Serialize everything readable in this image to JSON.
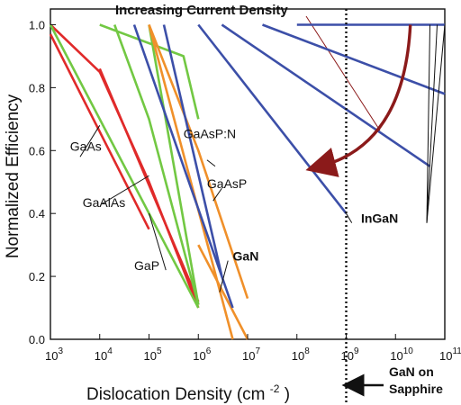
{
  "chart_data": {
    "type": "line",
    "title": "",
    "xlabel": "Dislocation Density (cm",
    "xlabel_sup": "-2",
    "xlabel_close": ")",
    "ylabel": "Normalized Efficiency",
    "x_scale": "log",
    "xlim": [
      1000,
      100000000000
    ],
    "ylim": [
      0.0,
      1.05
    ],
    "x_ticks": [
      1000,
      10000,
      100000,
      1000000,
      10000000,
      100000000,
      1000000000,
      10000000000,
      100000000000
    ],
    "x_tick_mantissa": "10",
    "x_tick_exponents": [
      "3",
      "4",
      "5",
      "6",
      "7",
      "8",
      "9",
      "10",
      "11"
    ],
    "y_ticks": [
      "0.0",
      "0.2",
      "0.4",
      "0.6",
      "0.8",
      "1.0"
    ],
    "grid": false,
    "colors": {
      "GaAs": "#e02a2a",
      "GaP": "#72c843",
      "GaAsP": "#f0902a",
      "GaN": "#3c4fa8",
      "InGaN": "#3c4fa8",
      "arrow": "#8b1a1a",
      "pointer": "#111111"
    },
    "series": [
      {
        "group": "GaAs",
        "color_key": "GaAs",
        "points": [
          [
            1000,
            1.0
          ],
          [
            10000,
            0.85
          ],
          [
            100000,
            0.5
          ],
          [
            1000000,
            0.1
          ]
        ]
      },
      {
        "group": "GaAs",
        "color_key": "GaAs",
        "points": [
          [
            1000,
            0.97
          ],
          [
            100000,
            0.35
          ]
        ]
      },
      {
        "group": "GaAs",
        "color_key": "GaAs",
        "points": [
          [
            10000,
            0.86
          ],
          [
            1000000,
            0.12
          ]
        ]
      },
      {
        "group": "GaAlAs",
        "color_key": "GaP",
        "points": [
          [
            1000,
            1.0
          ],
          [
            1000000,
            0.1
          ]
        ]
      },
      {
        "group": "GaP",
        "color_key": "GaP",
        "points": [
          [
            10000,
            1.0
          ],
          [
            500000,
            0.9
          ],
          [
            1000000,
            0.7
          ]
        ]
      },
      {
        "group": "GaP",
        "color_key": "GaP",
        "points": [
          [
            20000,
            1.0
          ],
          [
            100000,
            0.7
          ],
          [
            1000000,
            0.11
          ]
        ]
      },
      {
        "group": "GaP",
        "color_key": "GaP",
        "points": [
          [
            100000,
            1.0
          ],
          [
            1000000,
            0.11
          ]
        ]
      },
      {
        "group": "GaAsP",
        "color_key": "GaAsP",
        "points": [
          [
            100000,
            1.0
          ],
          [
            1000000,
            0.6
          ],
          [
            10000000,
            0.13
          ]
        ]
      },
      {
        "group": "GaAsP",
        "color_key": "GaAsP",
        "points": [
          [
            100000,
            1.0
          ],
          [
            5000000,
            0.0
          ]
        ]
      },
      {
        "group": "GaAsP",
        "color_key": "GaAsP",
        "points": [
          [
            1000000,
            0.3
          ],
          [
            10000000,
            0.0
          ]
        ]
      },
      {
        "group": "GaN",
        "color_key": "GaN",
        "points": [
          [
            50000,
            1.0
          ],
          [
            5000000,
            0.1
          ]
        ]
      },
      {
        "group": "GaN",
        "color_key": "GaN",
        "points": [
          [
            200000,
            1.0
          ],
          [
            3000000,
            0.2
          ]
        ]
      },
      {
        "group": "InGaN",
        "color_key": "InGaN",
        "points": [
          [
            1000000,
            1.0
          ],
          [
            1000000000,
            0.4
          ]
        ]
      },
      {
        "group": "InGaN",
        "color_key": "InGaN",
        "points": [
          [
            3000000,
            1.0
          ],
          [
            50000000000,
            0.55
          ]
        ]
      },
      {
        "group": "InGaN",
        "color_key": "InGaN",
        "points": [
          [
            20000000,
            1.0
          ],
          [
            100000000000,
            0.78
          ]
        ]
      },
      {
        "group": "InGaN",
        "color_key": "InGaN",
        "points": [
          [
            100000000,
            1.0
          ],
          [
            100000000000,
            1.0
          ]
        ]
      }
    ],
    "annotations": {
      "increasing_current": "Increasing Current Density",
      "gan_on": "GaN on",
      "sapphire": "Sapphire",
      "marker_x": 1000000000
    },
    "labels": [
      {
        "text": "GaAs",
        "bold": false,
        "color_key": "pointer",
        "at": [
          4000,
          0.58
        ],
        "to": [
          10000,
          0.68
        ],
        "tx": [
          2500,
          0.6
        ]
      },
      {
        "text": "GaAlAs",
        "bold": false,
        "color_key": "pointer",
        "at": [
          11000,
          0.43
        ],
        "to": [
          100000,
          0.52
        ],
        "tx": [
          4500,
          0.42
        ]
      },
      {
        "text": "GaAsP:N",
        "bold": false,
        "color_key": "pointer",
        "at": [
          1500000,
          0.57
        ],
        "to": [
          2200000,
          0.55
        ],
        "tx": [
          500000,
          0.64
        ]
      },
      {
        "text": "GaAsP",
        "bold": false,
        "color_key": "pointer",
        "at": [
          2000000,
          0.44
        ],
        "to": [
          3000000,
          0.48
        ],
        "tx": [
          1500000,
          0.48
        ]
      },
      {
        "text": "GaP",
        "bold": false,
        "color_key": "pointer",
        "at": [
          220000,
          0.22
        ],
        "to": [
          100000,
          0.4
        ],
        "tx": [
          50000,
          0.22
        ]
      },
      {
        "text": "GaN",
        "bold": true,
        "color_key": "pointer",
        "at": [
          2700000,
          0.15
        ],
        "to": [
          4000000,
          0.25
        ],
        "tx": [
          5000000,
          0.25
        ]
      },
      {
        "text": "InGaN",
        "bold": true,
        "color_key": "pointer",
        "at": [
          1300000000,
          0.37
        ],
        "to": [
          1000000000,
          0.4
        ],
        "tx": [
          2000000000,
          0.37
        ]
      }
    ]
  }
}
